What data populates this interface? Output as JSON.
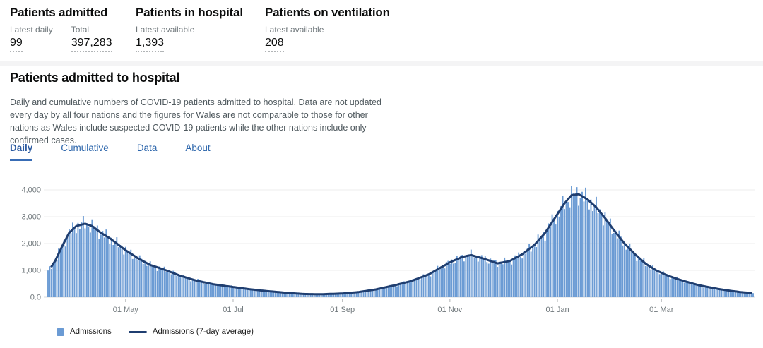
{
  "summary": {
    "cards": [
      {
        "title": "Patients admitted",
        "metrics": [
          {
            "label": "Latest daily",
            "value": "99"
          },
          {
            "label": "Total",
            "value": "397,283"
          }
        ]
      },
      {
        "title": "Patients in hospital",
        "metrics": [
          {
            "label": "Latest available",
            "value": "1,393"
          }
        ]
      },
      {
        "title": "Patients on ventilation",
        "metrics": [
          {
            "label": "Latest available",
            "value": "208"
          }
        ]
      }
    ]
  },
  "section": {
    "title": "Patients admitted to hospital",
    "description": "Daily and cumulative numbers of COVID-19 patients admitted to hospital. Data are not updated every day by all four nations and the figures for Wales are not comparable to those for other nations as Wales include suspected COVID-19 patients while the other nations include only confirmed cases.",
    "tabs": [
      {
        "label": "Daily",
        "active": true
      },
      {
        "label": "Cumulative",
        "active": false
      },
      {
        "label": "Data",
        "active": false
      },
      {
        "label": "About",
        "active": false
      }
    ]
  },
  "chart_data": {
    "type": "bar",
    "title": "",
    "xlabel": "",
    "ylabel": "",
    "start_date": "2020-03-18",
    "end_date": "2021-04-22",
    "ylim": [
      0,
      4300
    ],
    "grid": "horizontal",
    "y_ticks": [
      {
        "value": 0,
        "label": "0.0"
      },
      {
        "value": 1000,
        "label": "1,000"
      },
      {
        "value": 2000,
        "label": "2,000"
      },
      {
        "value": 3000,
        "label": "3,000"
      },
      {
        "value": 4000,
        "label": "4,000"
      }
    ],
    "x_ticks": [
      {
        "date": "2020-05-01",
        "label": "01 May"
      },
      {
        "date": "2020-07-01",
        "label": "01 Jul"
      },
      {
        "date": "2020-09-01",
        "label": "01 Sep"
      },
      {
        "date": "2020-11-01",
        "label": "01 Nov"
      },
      {
        "date": "2021-01-01",
        "label": "01 Jan"
      },
      {
        "date": "2021-03-01",
        "label": "01 Mar"
      }
    ],
    "series": [
      {
        "name": "Admissions",
        "type": "bar",
        "color": "#6b9bd4",
        "derived_from": "average_anchors",
        "bar_jitter": 0.13
      },
      {
        "name": "Admissions (7-day average)",
        "type": "line",
        "color": "#1f3e70",
        "average_anchors": [
          [
            "2020-03-18",
            950
          ],
          [
            "2020-03-22",
            1350
          ],
          [
            "2020-03-26",
            1900
          ],
          [
            "2020-03-30",
            2400
          ],
          [
            "2020-04-03",
            2650
          ],
          [
            "2020-04-08",
            2740
          ],
          [
            "2020-04-12",
            2650
          ],
          [
            "2020-04-17",
            2400
          ],
          [
            "2020-04-22",
            2200
          ],
          [
            "2020-04-28",
            1900
          ],
          [
            "2020-05-01",
            1750
          ],
          [
            "2020-05-08",
            1450
          ],
          [
            "2020-05-15",
            1200
          ],
          [
            "2020-05-22",
            1050
          ],
          [
            "2020-06-01",
            800
          ],
          [
            "2020-06-10",
            620
          ],
          [
            "2020-06-20",
            480
          ],
          [
            "2020-07-01",
            380
          ],
          [
            "2020-07-10",
            300
          ],
          [
            "2020-07-20",
            230
          ],
          [
            "2020-08-01",
            160
          ],
          [
            "2020-08-10",
            120
          ],
          [
            "2020-08-20",
            110
          ],
          [
            "2020-09-01",
            140
          ],
          [
            "2020-09-10",
            190
          ],
          [
            "2020-09-20",
            290
          ],
          [
            "2020-10-01",
            450
          ],
          [
            "2020-10-10",
            600
          ],
          [
            "2020-10-20",
            850
          ],
          [
            "2020-11-01",
            1300
          ],
          [
            "2020-11-08",
            1500
          ],
          [
            "2020-11-13",
            1570
          ],
          [
            "2020-11-20",
            1440
          ],
          [
            "2020-11-28",
            1260
          ],
          [
            "2020-12-05",
            1350
          ],
          [
            "2020-12-12",
            1600
          ],
          [
            "2020-12-19",
            1950
          ],
          [
            "2020-12-25",
            2400
          ],
          [
            "2020-12-31",
            3000
          ],
          [
            "2021-01-05",
            3500
          ],
          [
            "2021-01-09",
            3800
          ],
          [
            "2021-01-13",
            3840
          ],
          [
            "2021-01-18",
            3650
          ],
          [
            "2021-01-23",
            3350
          ],
          [
            "2021-01-28",
            2950
          ],
          [
            "2021-02-02",
            2500
          ],
          [
            "2021-02-08",
            2000
          ],
          [
            "2021-02-14",
            1600
          ],
          [
            "2021-02-20",
            1250
          ],
          [
            "2021-02-26",
            1000
          ],
          [
            "2021-03-04",
            820
          ],
          [
            "2021-03-10",
            680
          ],
          [
            "2021-03-16",
            560
          ],
          [
            "2021-03-22",
            450
          ],
          [
            "2021-03-28",
            370
          ],
          [
            "2021-04-03",
            300
          ],
          [
            "2021-04-09",
            240
          ],
          [
            "2021-04-15",
            190
          ],
          [
            "2021-04-22",
            150
          ]
        ]
      }
    ],
    "colors": {
      "grid": "#ececec",
      "baseline": "#d9dbdc",
      "axis_text": "#6f777b",
      "tick": "#b1b4b6"
    }
  },
  "legend": {
    "items": [
      {
        "label": "Admissions",
        "swatch": "square",
        "color": "#6b9bd4"
      },
      {
        "label": "Admissions (7-day average)",
        "swatch": "line",
        "color": "#1f3e70"
      }
    ]
  }
}
